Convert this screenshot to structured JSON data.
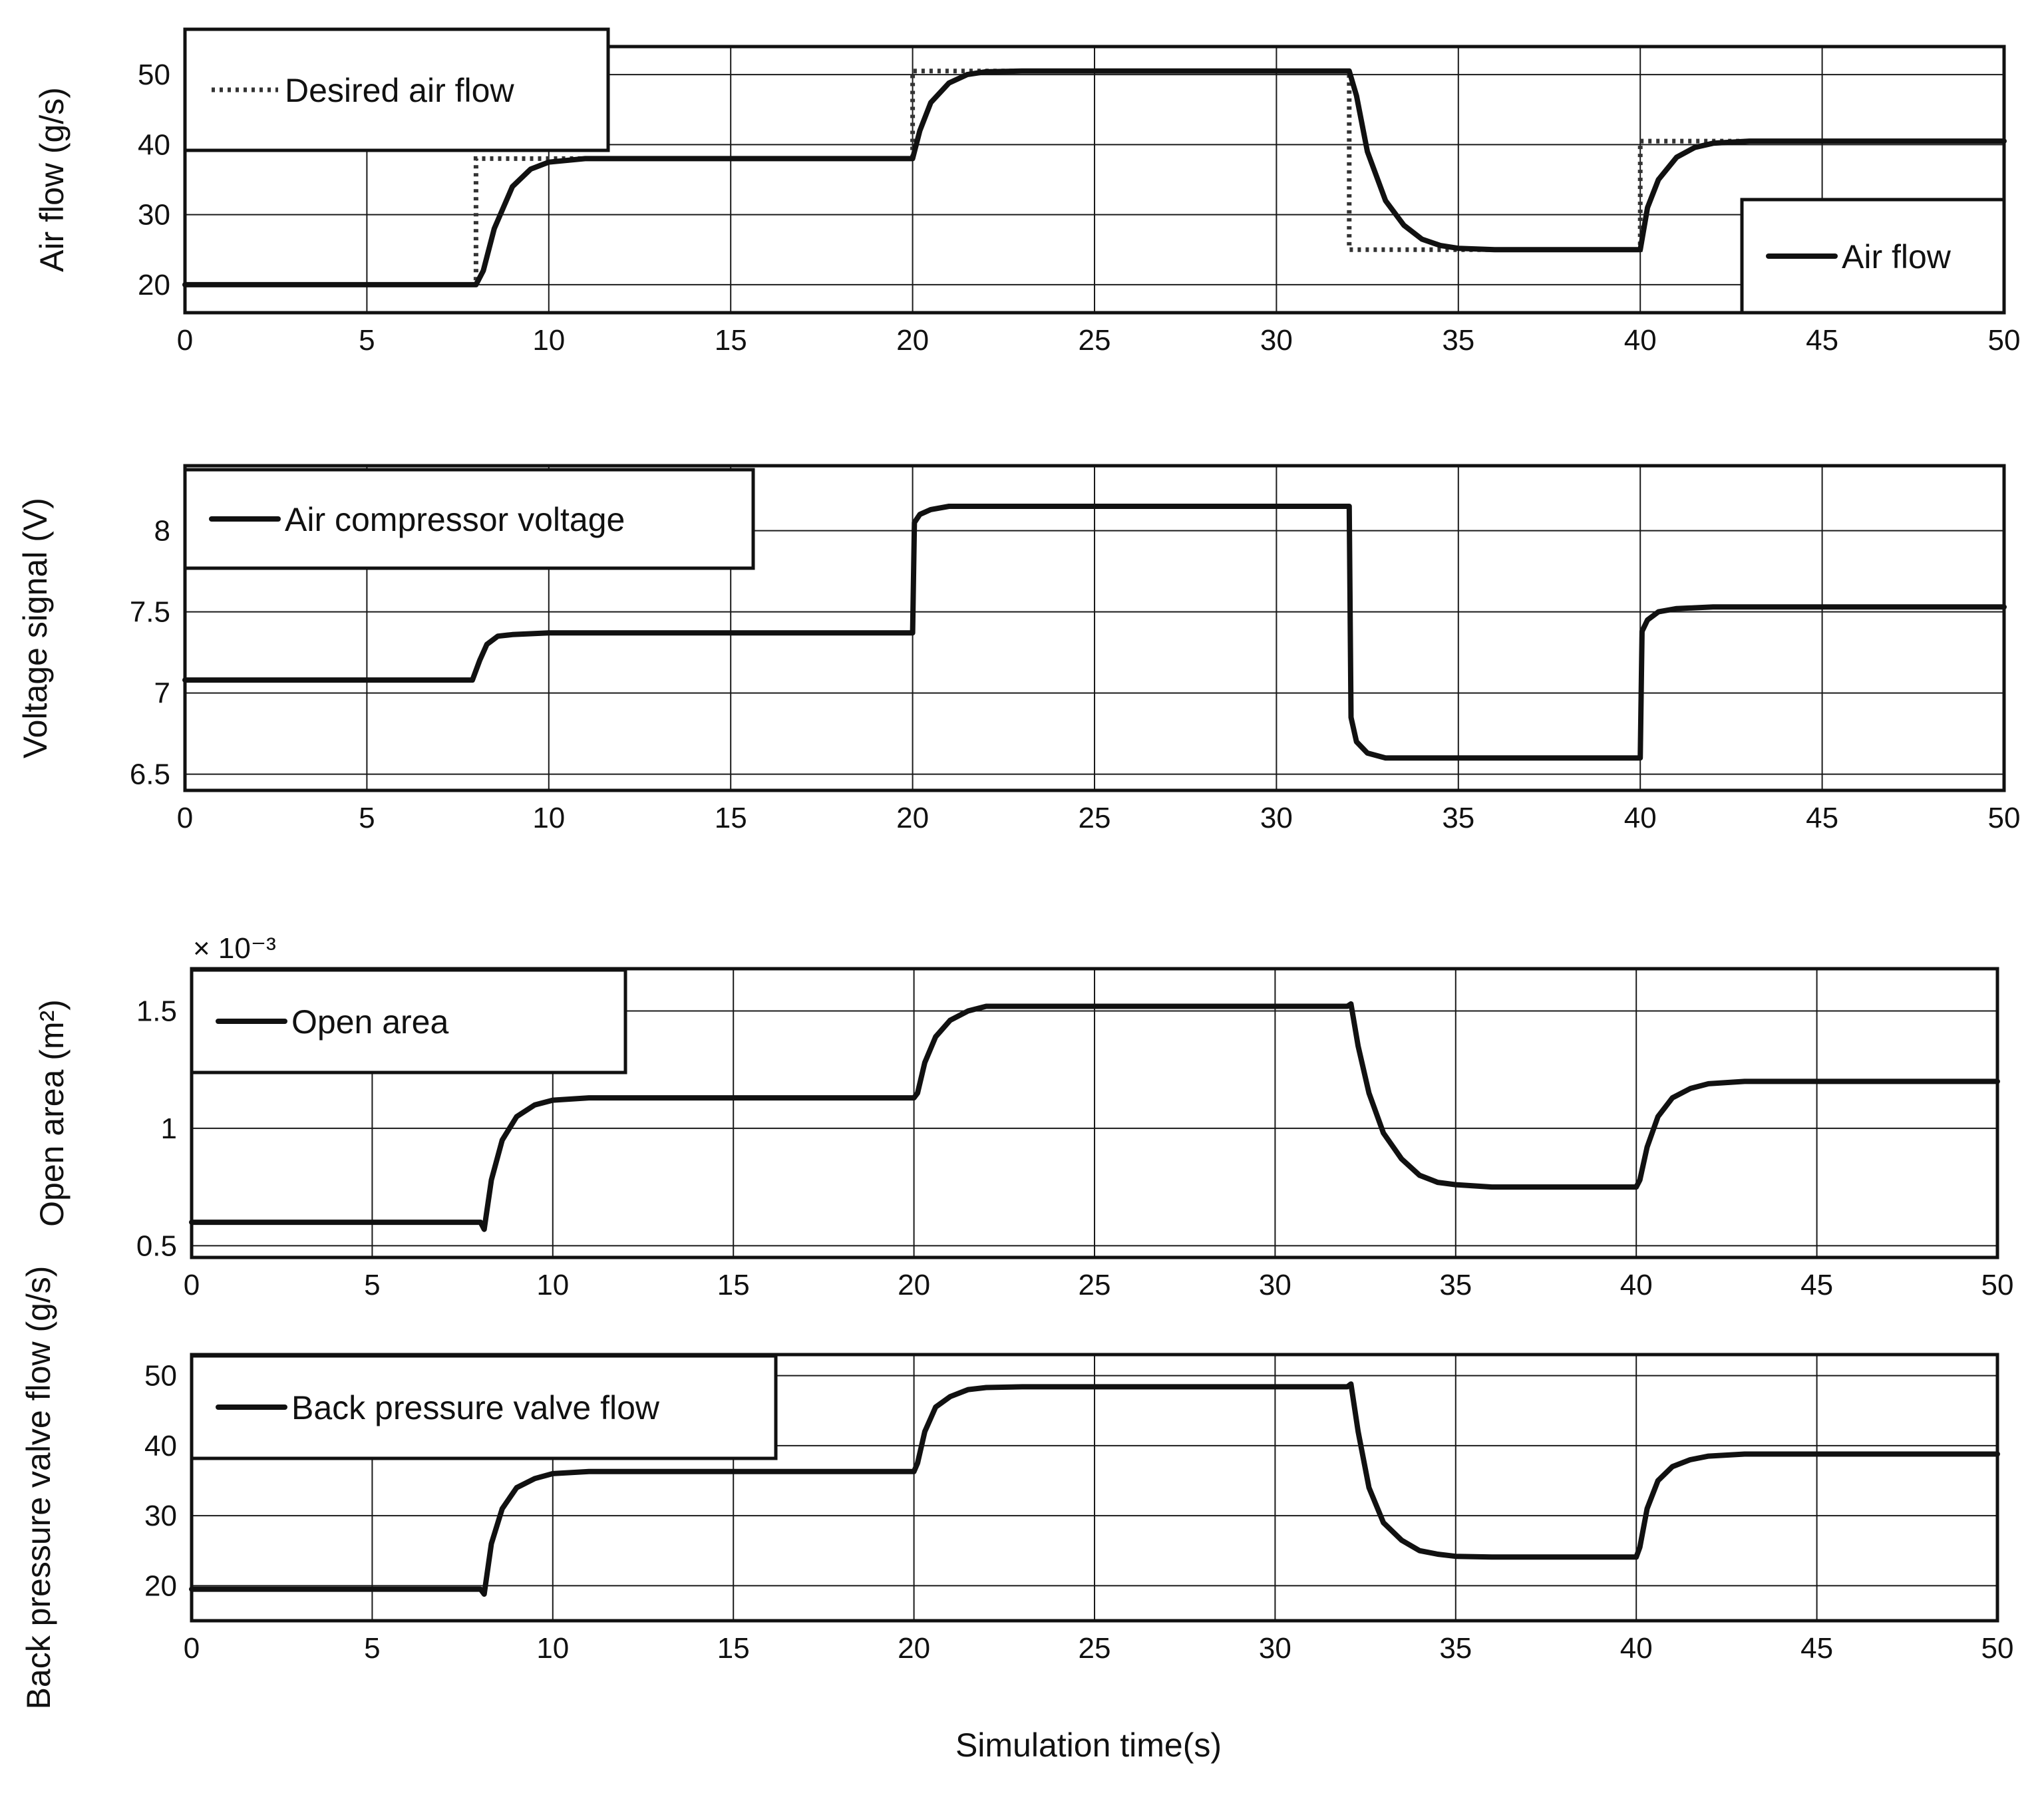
{
  "figure": {
    "xlabel": "Simulation time(s)"
  },
  "chart_data": [
    {
      "type": "line",
      "ylabel": "Air flow (g/s)",
      "xlim": [
        0,
        50
      ],
      "ylim": [
        16,
        54
      ],
      "xticks": [
        0,
        5,
        10,
        15,
        20,
        25,
        30,
        35,
        40,
        45,
        50
      ],
      "yticks": [
        20,
        30,
        40,
        50
      ],
      "ytick_labels": [
        "20",
        "30",
        "40",
        "50"
      ],
      "grid": true,
      "series": [
        {
          "name": "Desired air flow",
          "style": "dotted",
          "x": [
            0,
            8,
            8,
            20,
            20,
            32,
            32,
            40,
            40,
            50
          ],
          "y": [
            20,
            20,
            38,
            38,
            50.5,
            50.5,
            25,
            25,
            40.5,
            40.5
          ]
        },
        {
          "name": "Air flow",
          "style": "solid",
          "x": [
            0,
            8,
            8.2,
            8.5,
            9,
            9.5,
            10,
            11,
            12,
            20,
            20.2,
            20.5,
            21,
            21.5,
            22,
            23,
            32,
            32.2,
            32.5,
            33,
            33.5,
            34,
            34.5,
            35,
            36,
            40,
            40.2,
            40.5,
            41,
            41.5,
            42,
            43,
            50
          ],
          "y": [
            20,
            20,
            22,
            28,
            34,
            36.5,
            37.5,
            38,
            38,
            38,
            42,
            46,
            48.8,
            50,
            50.4,
            50.5,
            50.5,
            47,
            39,
            32,
            28.5,
            26.5,
            25.6,
            25.2,
            25,
            25,
            31,
            35,
            38.2,
            39.6,
            40.2,
            40.5,
            40.5
          ]
        }
      ],
      "legends": [
        {
          "entries": [
            "Desired air flow"
          ],
          "placement": "top-left"
        },
        {
          "entries": [
            "Air flow"
          ],
          "placement": "right"
        }
      ]
    },
    {
      "type": "line",
      "ylabel": "Voltage signal (V)",
      "xlim": [
        0,
        50
      ],
      "ylim": [
        6.4,
        8.4
      ],
      "xticks": [
        0,
        5,
        10,
        15,
        20,
        25,
        30,
        35,
        40,
        45,
        50
      ],
      "yticks": [
        6.5,
        7,
        7.5,
        8
      ],
      "ytick_labels": [
        "6.5",
        "7",
        "7.5",
        "8"
      ],
      "grid": true,
      "series": [
        {
          "name": "Air compressor voltage",
          "style": "solid",
          "x": [
            0,
            7.9,
            8.1,
            8.3,
            8.6,
            9,
            10,
            20,
            20.05,
            20.2,
            20.5,
            21,
            22,
            32,
            32.05,
            32.2,
            32.5,
            33,
            33.5,
            40,
            40.05,
            40.2,
            40.5,
            41,
            42,
            50
          ],
          "y": [
            7.08,
            7.08,
            7.2,
            7.3,
            7.35,
            7.36,
            7.37,
            7.37,
            8.05,
            8.1,
            8.13,
            8.15,
            8.15,
            8.15,
            6.85,
            6.7,
            6.63,
            6.6,
            6.6,
            6.6,
            7.38,
            7.45,
            7.5,
            7.52,
            7.53,
            7.53
          ]
        }
      ],
      "legends": [
        {
          "entries": [
            "Air compressor voltage"
          ],
          "placement": "top-left"
        }
      ]
    },
    {
      "type": "line",
      "ylabel": "Open area (m²)",
      "scale_label": "× 10⁻³",
      "xlim": [
        0,
        50
      ],
      "ylim": [
        0.45,
        1.68
      ],
      "xticks": [
        0,
        5,
        10,
        15,
        20,
        25,
        30,
        35,
        40,
        45,
        50
      ],
      "yticks": [
        0.5,
        1,
        1.5
      ],
      "ytick_labels": [
        "0.5",
        "1",
        "1.5"
      ],
      "grid": true,
      "series": [
        {
          "name": "Open area",
          "style": "solid",
          "x": [
            0,
            8,
            8.1,
            8.3,
            8.6,
            9,
            9.5,
            10,
            11,
            12,
            20,
            20.1,
            20.3,
            20.6,
            21,
            21.5,
            22,
            23,
            32,
            32.1,
            32.3,
            32.6,
            33,
            33.5,
            34,
            34.5,
            35,
            36,
            40,
            40.1,
            40.3,
            40.6,
            41,
            41.5,
            42,
            43,
            50
          ],
          "y": [
            0.6,
            0.6,
            0.57,
            0.78,
            0.95,
            1.05,
            1.1,
            1.12,
            1.13,
            1.13,
            1.13,
            1.15,
            1.28,
            1.39,
            1.46,
            1.5,
            1.52,
            1.52,
            1.52,
            1.53,
            1.35,
            1.15,
            0.98,
            0.87,
            0.8,
            0.77,
            0.76,
            0.75,
            0.75,
            0.78,
            0.92,
            1.05,
            1.13,
            1.17,
            1.19,
            1.2,
            1.2
          ]
        }
      ],
      "legends": [
        {
          "entries": [
            "Open area"
          ],
          "placement": "top-left"
        }
      ]
    },
    {
      "type": "line",
      "ylabel": "Back pressure valve flow (g/s)",
      "xlim": [
        0,
        50
      ],
      "ylim": [
        15,
        53
      ],
      "xticks": [
        0,
        5,
        10,
        15,
        20,
        25,
        30,
        35,
        40,
        45,
        50
      ],
      "yticks": [
        20,
        30,
        40,
        50
      ],
      "ytick_labels": [
        "20",
        "30",
        "40",
        "50"
      ],
      "grid": true,
      "series": [
        {
          "name": "Back pressure valve flow",
          "style": "solid",
          "x": [
            0,
            8,
            8.1,
            8.3,
            8.6,
            9,
            9.5,
            10,
            11,
            12,
            20,
            20.1,
            20.3,
            20.6,
            21,
            21.5,
            22,
            23,
            32,
            32.1,
            32.3,
            32.6,
            33,
            33.5,
            34,
            34.5,
            35,
            36,
            40,
            40.1,
            40.3,
            40.6,
            41,
            41.5,
            42,
            43,
            50
          ],
          "y": [
            19.5,
            19.5,
            18.8,
            26,
            31,
            34,
            35.3,
            36,
            36.3,
            36.3,
            36.3,
            37.5,
            42,
            45.5,
            47,
            48,
            48.3,
            48.4,
            48.4,
            48.8,
            42,
            34,
            29,
            26.5,
            25,
            24.5,
            24.2,
            24.1,
            24.1,
            25.5,
            31,
            35,
            37,
            38,
            38.5,
            38.8,
            38.8
          ]
        }
      ],
      "legends": [
        {
          "entries": [
            "Back pressure valve flow"
          ],
          "placement": "top-left"
        }
      ]
    }
  ]
}
